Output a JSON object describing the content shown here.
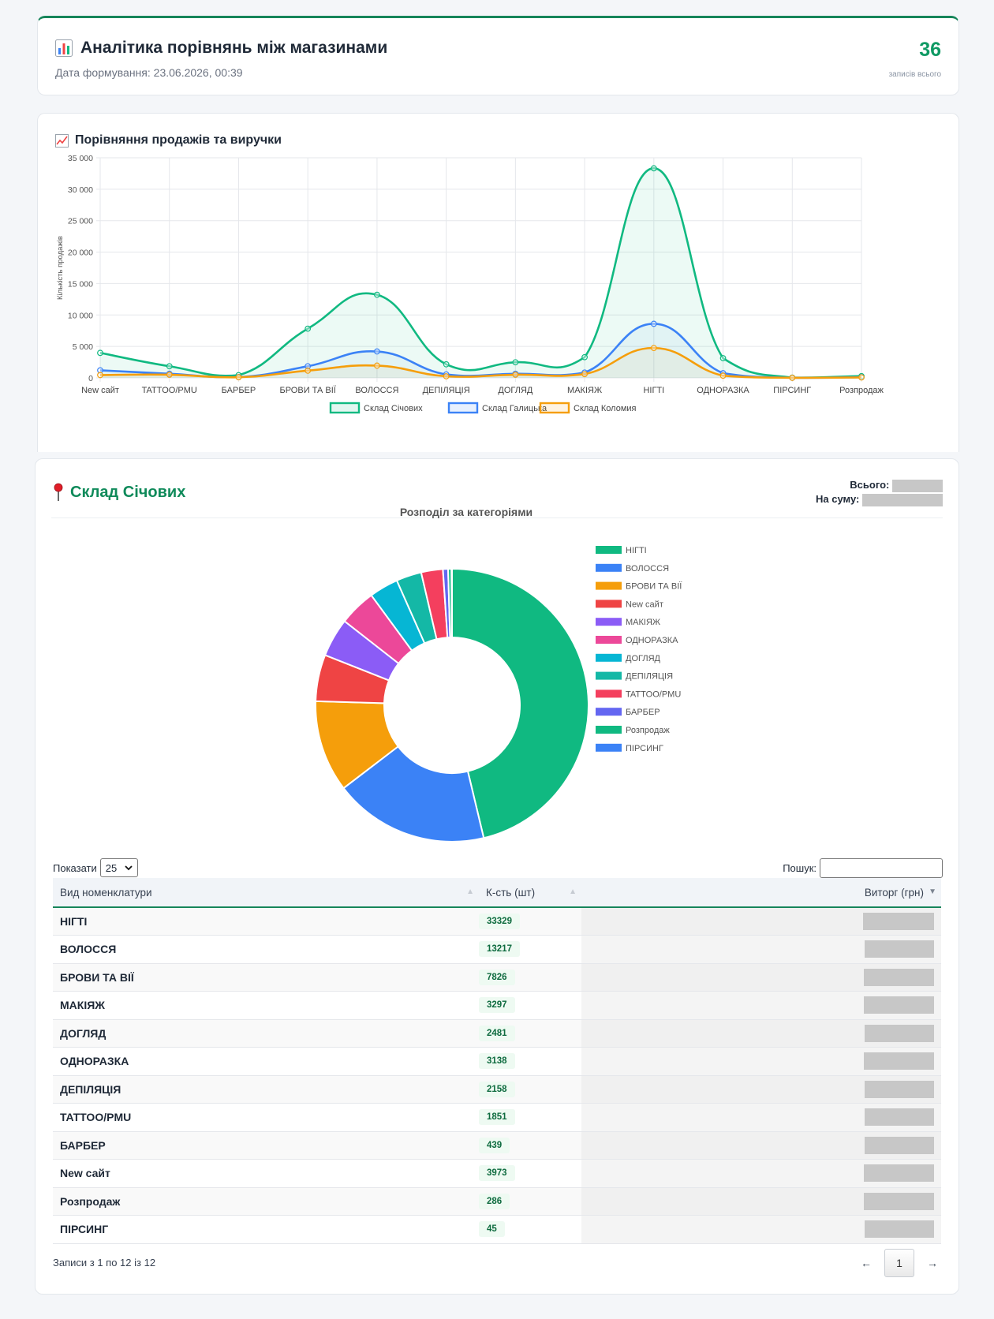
{
  "header": {
    "icon": "bar-chart-icon",
    "title": "Аналітика порівнянь між магазинами",
    "date_label": "Дата формування: 23.06.2026, 00:39",
    "total_count": "36",
    "total_label": "записів всього"
  },
  "line_section": {
    "icon": "line-chart-icon",
    "title": "Порівняння продажів та виручки"
  },
  "chart_data": [
    {
      "type": "line",
      "title": "",
      "ylabel": "Кількість продажів",
      "xlabel": "",
      "ylim": [
        0,
        35000
      ],
      "yticks": [
        "0",
        "5 000",
        "10 000",
        "15 000",
        "20 000",
        "25 000",
        "30 000",
        "35 000"
      ],
      "grid": true,
      "legend": "bottom",
      "categories": [
        "New сайт",
        "TATTOO/PMU",
        "БАРБЕР",
        "БРОВИ ТА ВІЇ",
        "ВОЛОССЯ",
        "ДЕПІЛЯЦІЯ",
        "ДОГЛЯД",
        "МАКІЯЖ",
        "НІГТІ",
        "ОДНОРАЗКА",
        "ПІРСИНГ",
        "Розпродаж"
      ],
      "series": [
        {
          "name": "Склад Січових",
          "color": "#10b981",
          "values": [
            3973,
            1851,
            439,
            7826,
            13217,
            2158,
            2481,
            3297,
            33329,
            3138,
            45,
            286
          ]
        },
        {
          "name": "Склад Галицька",
          "color": "#3b82f6",
          "values": [
            1200,
            650,
            120,
            1850,
            4200,
            550,
            650,
            850,
            8600,
            750,
            15,
            100
          ]
        },
        {
          "name": "Склад Коломия",
          "color": "#f59e0b",
          "values": [
            450,
            500,
            100,
            1150,
            1950,
            250,
            500,
            600,
            4750,
            350,
            10,
            70
          ]
        }
      ]
    },
    {
      "type": "pie",
      "title": "Розподіл за категоріями",
      "legend": "right",
      "categories": [
        "НІГТІ",
        "ВОЛОССЯ",
        "БРОВИ ТА ВІЇ",
        "New сайт",
        "МАКІЯЖ",
        "ОДНОРАЗКА",
        "ДОГЛЯД",
        "ДЕПІЛЯЦІЯ",
        "TATTOO/PMU",
        "БАРБЕР",
        "Розпродаж",
        "ПІРСИНГ"
      ],
      "values": [
        33329,
        13217,
        7826,
        3973,
        3297,
        3138,
        2481,
        2158,
        1851,
        439,
        286,
        45
      ],
      "colors": [
        "#10b981",
        "#3b82f6",
        "#f59e0b",
        "#ef4444",
        "#8b5cf6",
        "#ec4899",
        "#06b6d4",
        "#14b8a6",
        "#f43f5e",
        "#6366f1",
        "#10b981",
        "#3b82f6"
      ]
    }
  ],
  "store": {
    "icon": "pin-icon",
    "name": "Склад Січових",
    "total_label": "Всього:",
    "sum_label": "На суму:"
  },
  "table": {
    "show_label": "Показати",
    "page_size": "25",
    "search_label": "Пошук:",
    "search_value": "",
    "columns": [
      "Вид номенклатури",
      "К-сть (шт)",
      "Виторг (грн)"
    ],
    "rows": [
      {
        "name": "НІГТІ",
        "qty": "33329"
      },
      {
        "name": "ВОЛОССЯ",
        "qty": "13217"
      },
      {
        "name": "БРОВИ ТА ВІЇ",
        "qty": "7826"
      },
      {
        "name": "МАКІЯЖ",
        "qty": "3297"
      },
      {
        "name": "ДОГЛЯД",
        "qty": "2481"
      },
      {
        "name": "ОДНОРАЗКА",
        "qty": "3138"
      },
      {
        "name": "ДЕПІЛЯЦІЯ",
        "qty": "2158"
      },
      {
        "name": "TATTOO/PMU",
        "qty": "1851"
      },
      {
        "name": "БАРБЕР",
        "qty": "439"
      },
      {
        "name": "New сайт",
        "qty": "3973"
      },
      {
        "name": "Розпродаж",
        "qty": "286"
      },
      {
        "name": "ПІРСИНГ",
        "qty": "45"
      }
    ],
    "info": "Записи з 1 по 12 із 12",
    "pager": {
      "prev": "←",
      "page": "1",
      "next": "→"
    }
  }
}
